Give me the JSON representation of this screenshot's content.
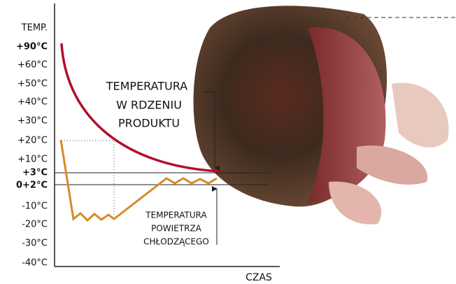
{
  "axis": {
    "y_title": "TEMP.",
    "y_labels": [
      "+90°C",
      "+60°C",
      "+50°C",
      "+40°C",
      "+30°C",
      "+20°C",
      "+10°C",
      "+3°C",
      "0+2°C",
      "-10°C",
      "-20°C",
      "-30°C",
      "-40°C"
    ],
    "x_title": "CZAS"
  },
  "annotations": {
    "core": [
      "TEMPERATURA",
      "W RDZENIU",
      "PRODUKTU"
    ],
    "air": [
      "TEMPERATURA",
      "POWIETRZA",
      "CHŁODZĄCEGO"
    ]
  }
}
